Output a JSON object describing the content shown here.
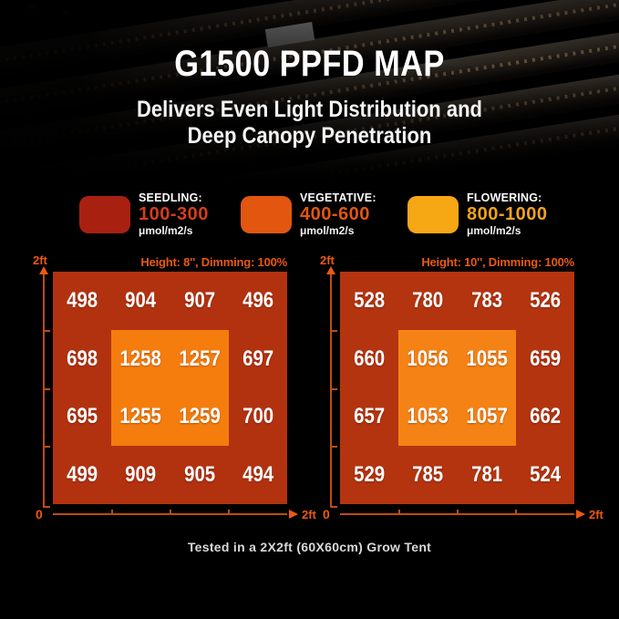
{
  "hero": {
    "title": "G1500 PPFD MAP",
    "subtitle_line1": "Delivers Even Light Distribution and",
    "subtitle_line2": "Deep Canopy Penetration"
  },
  "legend": {
    "items": [
      {
        "label": "SEEDLING:",
        "range": "100-300",
        "unit": "μmol/m2/s",
        "swatch_color": "#a82110",
        "range_color": "#d63d1c"
      },
      {
        "label": "VEGETATIVE:",
        "range": "400-600",
        "unit": "μmol/m2/s",
        "swatch_color": "#e2560f",
        "range_color": "#e2560f"
      },
      {
        "label": "FLOWERING:",
        "range": "800-1000",
        "unit": "μmol/m2/s",
        "swatch_color": "#f6a714",
        "range_color": "#f2a31d"
      }
    ]
  },
  "maps": [
    {
      "header": "Height: 8'', Dimming: 100%",
      "axis": {
        "top_label": "2ft",
        "origin_label": "0",
        "right_label": "2ft"
      },
      "outer_color": "#b23210",
      "inner_color": "#f57d0e",
      "values": [
        [
          498,
          904,
          907,
          496
        ],
        [
          698,
          1258,
          1257,
          697
        ],
        [
          695,
          1255,
          1259,
          700
        ],
        [
          499,
          909,
          905,
          494
        ]
      ]
    },
    {
      "header": "Height: 10'', Dimming: 100%",
      "axis": {
        "top_label": "2ft",
        "origin_label": "0",
        "right_label": "2ft"
      },
      "outer_color": "#b43410",
      "inner_color": "#f58215",
      "values": [
        [
          528,
          780,
          783,
          526
        ],
        [
          660,
          1056,
          1055,
          659
        ],
        [
          657,
          1053,
          1057,
          662
        ],
        [
          529,
          785,
          781,
          524
        ]
      ]
    }
  ],
  "footer": {
    "caption": "Tested in a 2X2ft (60X60cm) Grow Tent"
  },
  "chart_data": [
    {
      "type": "heatmap",
      "title": "Height: 8'', Dimming: 100%",
      "xlabel": "2ft",
      "ylabel": "2ft",
      "x_range_ft": [
        0,
        2
      ],
      "y_range_ft": [
        0,
        2
      ],
      "unit": "μmol/m2/s",
      "grid": "4x4",
      "values": [
        [
          498,
          904,
          907,
          496
        ],
        [
          698,
          1258,
          1257,
          697
        ],
        [
          695,
          1255,
          1259,
          700
        ],
        [
          499,
          909,
          905,
          494
        ]
      ]
    },
    {
      "type": "heatmap",
      "title": "Height: 10'', Dimming: 100%",
      "xlabel": "2ft",
      "ylabel": "2ft",
      "x_range_ft": [
        0,
        2
      ],
      "y_range_ft": [
        0,
        2
      ],
      "unit": "μmol/m2/s",
      "grid": "4x4",
      "values": [
        [
          528,
          780,
          783,
          526
        ],
        [
          660,
          1056,
          1055,
          659
        ],
        [
          657,
          1053,
          1057,
          662
        ],
        [
          529,
          785,
          781,
          524
        ]
      ]
    }
  ]
}
